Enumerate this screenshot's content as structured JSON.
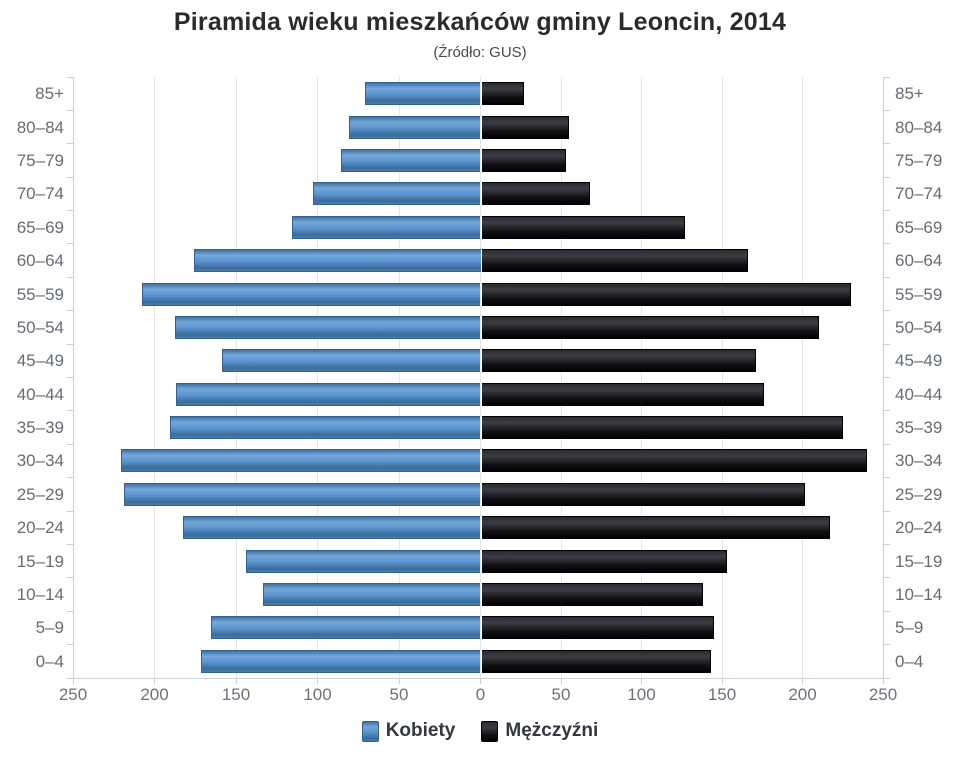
{
  "chart_data": {
    "type": "bar",
    "variant": "population-pyramid",
    "title": "Piramida wieku mieszkańców gminy Leoncin, 2014",
    "subtitle": "(Źródło: GUS)",
    "categories": [
      "85+",
      "80–84",
      "75–79",
      "70–74",
      "65–69",
      "60–64",
      "55–59",
      "50–54",
      "45–49",
      "40–44",
      "35–39",
      "30–34",
      "25–29",
      "20–24",
      "15–19",
      "10–14",
      "5–9",
      "0–4"
    ],
    "series": [
      {
        "name": "Kobiety",
        "side": "left",
        "color": "#5992cc",
        "values": [
          70,
          80,
          85,
          102,
          115,
          175,
          207,
          187,
          158,
          186,
          190,
          220,
          218,
          182,
          143,
          133,
          165,
          171
        ]
      },
      {
        "name": "Mężczyźni",
        "side": "right",
        "color": "#121216",
        "values": [
          26,
          54,
          52,
          67,
          126,
          165,
          229,
          209,
          170,
          175,
          224,
          239,
          200,
          216,
          152,
          137,
          144,
          142
        ]
      }
    ],
    "x_axis": {
      "max": 250,
      "tick_interval": 50,
      "tick_labels": [
        "250",
        "200",
        "150",
        "100",
        "50",
        "0",
        "50",
        "100",
        "150",
        "200",
        "250"
      ]
    },
    "grid": true,
    "legend_position": "bottom"
  },
  "colors": {
    "female_bar": "#5992cc",
    "male_bar": "#121216",
    "gridline": "#e4e6e8",
    "axis": "#ccd1d6",
    "axis_text": "#656c76",
    "title_text": "#2b2b2b"
  }
}
